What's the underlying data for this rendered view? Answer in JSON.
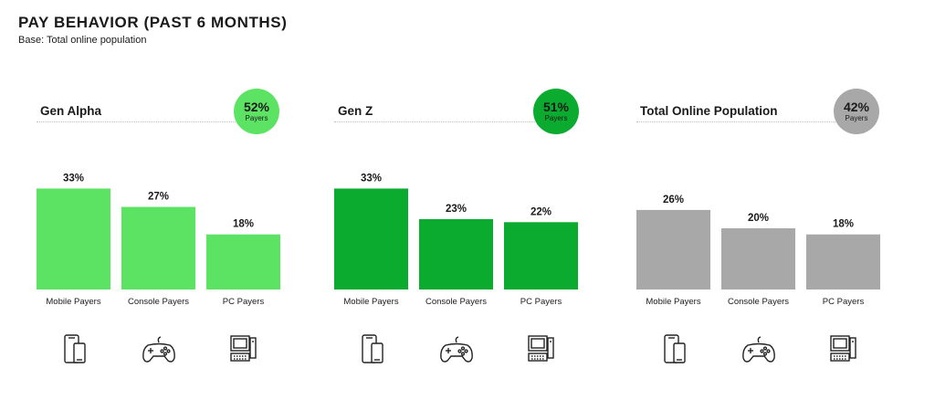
{
  "title": "PAY BEHAVIOR (PAST 6 MONTHS)",
  "subtitle": "Base: Total online population",
  "chart_data": [
    {
      "type": "bar",
      "title": "Gen Alpha",
      "badge": {
        "value": "52%",
        "label": "Payers"
      },
      "categories": [
        "Mobile Payers",
        "Console Payers",
        "PC Payers"
      ],
      "values": [
        33,
        27,
        18
      ],
      "value_labels": [
        "33%",
        "27%",
        "18%"
      ],
      "color": "#5de363",
      "badge_color": "#5de363",
      "icons": [
        "smartphone-tablet-icon",
        "gamepad-icon",
        "desktop-computer-icon"
      ]
    },
    {
      "type": "bar",
      "title": "Gen Z",
      "badge": {
        "value": "51%",
        "label": "Payers"
      },
      "categories": [
        "Mobile Payers",
        "Console Payers",
        "PC Payers"
      ],
      "values": [
        33,
        23,
        22
      ],
      "value_labels": [
        "33%",
        "23%",
        "22%"
      ],
      "color": "#0aab2f",
      "badge_color": "#0aab2f",
      "icons": [
        "smartphone-tablet-icon",
        "gamepad-icon",
        "desktop-computer-icon"
      ]
    },
    {
      "type": "bar",
      "title": "Total Online Population",
      "badge": {
        "value": "42%",
        "label": "Payers"
      },
      "categories": [
        "Mobile Payers",
        "Console Payers",
        "PC Payers"
      ],
      "values": [
        26,
        20,
        18
      ],
      "value_labels": [
        "26%",
        "20%",
        "18%"
      ],
      "color": "#a8a8a8",
      "badge_color": "#a8a8a8",
      "icons": [
        "smartphone-tablet-icon",
        "gamepad-icon",
        "desktop-computer-icon"
      ]
    }
  ]
}
